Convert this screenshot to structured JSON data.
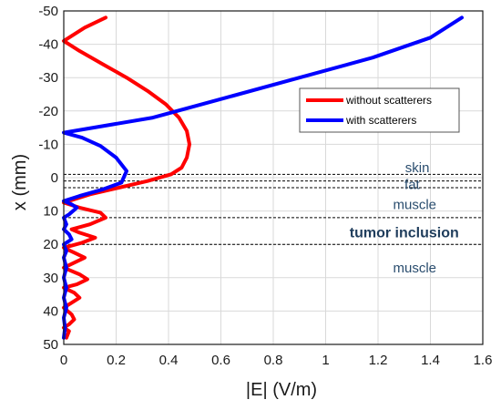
{
  "chart_data": {
    "type": "line",
    "xlabel": "|E| (V/m)",
    "ylabel": "x (mm)",
    "xlim": [
      0,
      1.6
    ],
    "ylim": [
      -50,
      50
    ],
    "y_reversed": true,
    "grid": true,
    "legend_position": "top-right",
    "xticks": [
      "0",
      "0.2",
      "0.4",
      "0.6",
      "0.8",
      "1",
      "1.2",
      "1.4",
      "1.6"
    ],
    "xtick_values": [
      0,
      0.2,
      0.4,
      0.6,
      0.8,
      1.0,
      1.2,
      1.4,
      1.6
    ],
    "yticks": [
      "-50",
      "-40",
      "-30",
      "-20",
      "-10",
      "0",
      "10",
      "20",
      "30",
      "40",
      "50"
    ],
    "ytick_values": [
      -50,
      -40,
      -30,
      -20,
      -10,
      0,
      10,
      20,
      30,
      40,
      50
    ],
    "series": [
      {
        "name": "without scatterers",
        "color": "#ff0000",
        "points": [
          [
            0.16,
            -48
          ],
          [
            0.08,
            -45
          ],
          [
            0.0,
            -41
          ],
          [
            0.06,
            -38
          ],
          [
            0.15,
            -34
          ],
          [
            0.24,
            -30
          ],
          [
            0.32,
            -26
          ],
          [
            0.39,
            -22
          ],
          [
            0.44,
            -18
          ],
          [
            0.47,
            -14
          ],
          [
            0.48,
            -10
          ],
          [
            0.47,
            -6
          ],
          [
            0.45,
            -3
          ],
          [
            0.41,
            -1
          ],
          [
            0.32,
            1
          ],
          [
            0.21,
            3
          ],
          [
            0.1,
            5
          ],
          [
            0.0,
            7.5
          ],
          [
            0.06,
            9
          ],
          [
            0.14,
            10.5
          ],
          [
            0.16,
            12
          ],
          [
            0.1,
            14
          ],
          [
            0.03,
            15.5
          ],
          [
            0.06,
            16.5
          ],
          [
            0.12,
            18
          ],
          [
            0.07,
            19.5
          ],
          [
            0.0,
            21
          ],
          [
            0.04,
            22.5
          ],
          [
            0.08,
            24
          ],
          [
            0.04,
            25.5
          ],
          [
            0.0,
            27
          ],
          [
            0.06,
            29
          ],
          [
            0.09,
            30.5
          ],
          [
            0.05,
            32
          ],
          [
            0.0,
            33
          ],
          [
            0.04,
            34.5
          ],
          [
            0.06,
            36
          ],
          [
            0.03,
            37.5
          ],
          [
            0.0,
            39
          ],
          [
            0.03,
            41
          ],
          [
            0.04,
            42.5
          ],
          [
            0.02,
            44
          ],
          [
            0.0,
            45
          ],
          [
            0.02,
            46
          ],
          [
            0.01,
            48
          ]
        ]
      },
      {
        "name": "with scatterers",
        "color": "#0000ff",
        "points": [
          [
            1.52,
            -48
          ],
          [
            1.4,
            -42
          ],
          [
            1.18,
            -36
          ],
          [
            0.9,
            -30
          ],
          [
            0.62,
            -24
          ],
          [
            0.34,
            -18
          ],
          [
            0.0,
            -13.5
          ],
          [
            0.07,
            -12
          ],
          [
            0.14,
            -9.5
          ],
          [
            0.2,
            -6
          ],
          [
            0.24,
            -2
          ],
          [
            0.22,
            1.5
          ],
          [
            0.15,
            3.5
          ],
          [
            0.06,
            5.5
          ],
          [
            0.0,
            7
          ],
          [
            0.03,
            8
          ],
          [
            0.05,
            9
          ],
          [
            0.02,
            11
          ],
          [
            0.0,
            12
          ],
          [
            0.01,
            14
          ],
          [
            0.0,
            15.5
          ],
          [
            0.02,
            17
          ],
          [
            0.03,
            18.5
          ],
          [
            0.0,
            20
          ],
          [
            0.01,
            22
          ],
          [
            0.0,
            24
          ],
          [
            0.01,
            27
          ],
          [
            0.0,
            30
          ],
          [
            0.01,
            33
          ],
          [
            0.0,
            36
          ],
          [
            0.01,
            39
          ],
          [
            0.0,
            42
          ],
          [
            0.005,
            45
          ],
          [
            0.0,
            48
          ]
        ]
      }
    ],
    "boundary_lines_y": [
      -1,
      1,
      3,
      12,
      20
    ],
    "annotations": [
      {
        "text": "skin",
        "x": 1.35,
        "y": -3,
        "style": "normal"
      },
      {
        "text": "fat",
        "x": 1.33,
        "y": 2,
        "style": "normal"
      },
      {
        "text": "muscle",
        "x": 1.34,
        "y": 8,
        "style": "normal"
      },
      {
        "text": "tumor inclusion",
        "x": 1.3,
        "y": 16.5,
        "style": "bold"
      },
      {
        "text": "muscle",
        "x": 1.34,
        "y": 27,
        "style": "normal"
      }
    ]
  }
}
